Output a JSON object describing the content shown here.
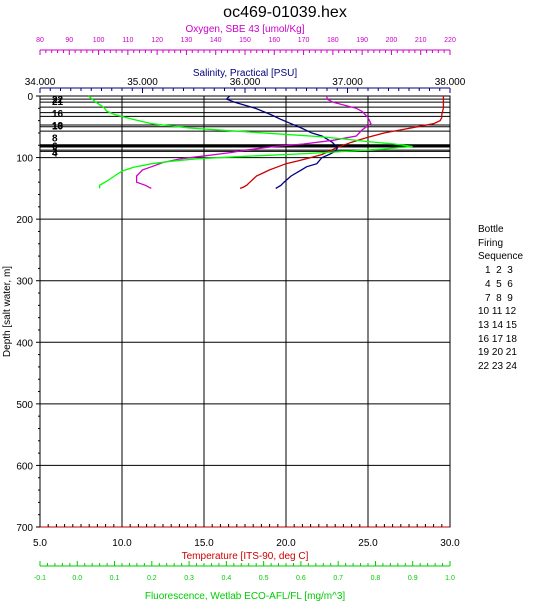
{
  "chart_data": {
    "type": "line",
    "title": "oc469-01039.hex",
    "y_axis": {
      "label": "Depth [salt water, m]",
      "lim": [
        0,
        700
      ],
      "inverted": true,
      "ticks": [
        0,
        100,
        200,
        300,
        400,
        500,
        600,
        700
      ]
    },
    "x_axes": [
      {
        "name": "oxygen",
        "label": "Oxygen, SBE 43 [umol/Kg]",
        "position": "top",
        "color": "#cc00cc",
        "lim": [
          80,
          220
        ],
        "ticks": [
          80,
          90,
          100,
          110,
          120,
          130,
          140,
          150,
          160,
          170,
          180,
          190,
          200,
          210,
          220
        ],
        "tick_labels": [
          "80",
          "90",
          "100",
          "110",
          "120",
          "130",
          "140",
          "150",
          "160",
          "170",
          "180",
          "190",
          "200",
          "210",
          "220"
        ]
      },
      {
        "name": "salinity",
        "label": "Salinity, Practical [PSU]",
        "position": "top",
        "color": "#000080",
        "lim": [
          34.0,
          38.0
        ],
        "ticks": [
          34,
          35,
          36,
          37,
          38
        ],
        "tick_labels": [
          "34.000",
          "35.000",
          "36.000",
          "37.000",
          "38.000"
        ]
      },
      {
        "name": "temperature",
        "label": "Temperature [ITS-90, deg C]",
        "position": "bottom",
        "color": "#cc0000",
        "lim": [
          5,
          30
        ],
        "ticks": [
          5,
          10,
          15,
          20,
          25,
          30
        ],
        "tick_labels": [
          "5.0",
          "10.0",
          "15.0",
          "20.0",
          "25.0",
          "30.0"
        ]
      },
      {
        "name": "fluorescence",
        "label": "Fluorescence, Wetlab ECO-AFL/FL [mg/m^3]",
        "position": "bottom",
        "color": "#00cc00",
        "lim": [
          -0.1,
          1.0
        ],
        "ticks": [
          -0.1,
          0.0,
          0.1,
          0.2,
          0.3,
          0.4,
          0.5,
          0.6,
          0.7,
          0.8,
          0.9,
          1.0
        ],
        "tick_labels": [
          "-0.1",
          "0.0",
          "0.1",
          "0.2",
          "0.3",
          "0.4",
          "0.5",
          "0.6",
          "0.7",
          "0.8",
          "0.9",
          "1.0"
        ]
      }
    ],
    "series": [
      {
        "axis": "temperature",
        "color": "#cc0000",
        "x": [
          29.6,
          29.6,
          29.6,
          29.5,
          29.5,
          29.4,
          29.0,
          28.0,
          27.0,
          26.0,
          25.0,
          24.0,
          23.0,
          22.2,
          21.5,
          20.8,
          20.0,
          19.5,
          19.0,
          18.6,
          18.2,
          18.0,
          17.8,
          17.6,
          17.4,
          17.2
        ],
        "y": [
          0,
          10,
          20,
          30,
          35,
          40,
          45,
          50,
          55,
          60,
          67,
          75,
          85,
          95,
          100,
          105,
          110,
          115,
          120,
          125,
          130,
          135,
          140,
          145,
          148,
          150
        ]
      },
      {
        "axis": "salinity",
        "color": "#000080",
        "x": [
          35.85,
          35.82,
          35.9,
          36.1,
          36.25,
          36.35,
          36.45,
          36.55,
          36.65,
          36.75,
          36.85,
          36.88,
          36.9,
          36.88,
          36.82,
          36.75,
          36.7,
          36.6,
          36.55,
          36.45,
          36.38,
          36.35,
          36.3
        ],
        "y": [
          0,
          5,
          10,
          20,
          30,
          38,
          45,
          52,
          60,
          65,
          75,
          80,
          85,
          90,
          95,
          100,
          110,
          115,
          120,
          130,
          140,
          145,
          150
        ]
      },
      {
        "axis": "oxygen",
        "color": "#cc00cc",
        "x": [
          178,
          178,
          180,
          184,
          188,
          190,
          192,
          193,
          190,
          188,
          180,
          170,
          160,
          150,
          145,
          140,
          135,
          128,
          122,
          118,
          115,
          113,
          113,
          116,
          118
        ],
        "y": [
          0,
          5,
          10,
          15,
          20,
          25,
          35,
          45,
          55,
          65,
          72,
          78,
          82,
          88,
          92,
          95,
          98,
          102,
          108,
          115,
          120,
          130,
          140,
          145,
          150
        ]
      },
      {
        "axis": "fluorescence",
        "color": "#00ff00",
        "x": [
          0.03,
          0.04,
          0.05,
          0.07,
          0.08,
          0.1,
          0.15,
          0.2,
          0.3,
          0.45,
          0.55,
          0.65,
          0.72,
          0.78,
          0.85,
          0.9,
          0.82,
          0.72,
          0.6,
          0.45,
          0.32,
          0.25,
          0.2,
          0.15,
          0.12,
          0.1,
          0.08,
          0.06,
          0.06
        ],
        "y": [
          0,
          5,
          10,
          18,
          25,
          30,
          38,
          45,
          52,
          58,
          62,
          66,
          70,
          74,
          78,
          82,
          86,
          90,
          94,
          98,
          102,
          106,
          110,
          116,
          122,
          130,
          138,
          145,
          150
        ]
      }
    ],
    "bottle_lines_depth": [
      5,
      10,
      18,
      27,
      33,
      47,
      50,
      57,
      80,
      82,
      88,
      90
    ],
    "bottle_labels": [
      {
        "depth": 5,
        "text": "22"
      },
      {
        "depth": 8,
        "text": "21"
      },
      {
        "depth": 28,
        "text": "16"
      },
      {
        "depth": 47,
        "text": "13"
      },
      {
        "depth": 48,
        "text": "10"
      },
      {
        "depth": 67,
        "text": "8"
      },
      {
        "depth": 80,
        "text": "6"
      },
      {
        "depth": 90,
        "text": "3"
      },
      {
        "depth": 92,
        "text": "4"
      }
    ],
    "legend": {
      "title_lines": [
        "Bottle",
        "Firing",
        "Sequence"
      ],
      "rows": [
        "1  2  3",
        "4  5  6",
        "7  8  9",
        "10 11 12",
        "13 14 15",
        "16 17 18",
        "19 20 21",
        "22 23 24"
      ]
    },
    "grid": true
  }
}
